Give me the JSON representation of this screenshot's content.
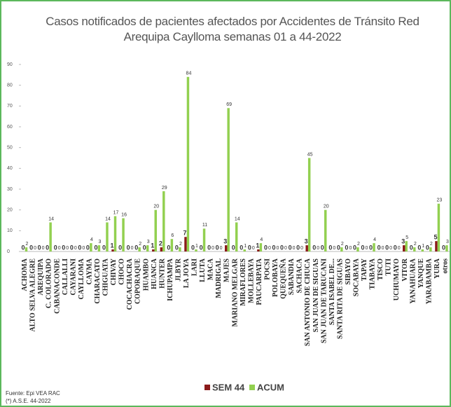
{
  "chart_data": {
    "type": "bar",
    "title": "Casos notificados  de pacientes afectados por Accidentes de Tránsito Red Arequipa Caylloma  semanas 01 a 44-2022",
    "categories": [
      "ACHOMA",
      "ALTO SELVA ALEGRE",
      "AREQUIPA",
      "C. COLORADO",
      "CABANACONDE",
      "CALLALLI",
      "CAYARANI",
      "CAYLLOMA",
      "CAYMA",
      "CHARACATO",
      "CHIGUATA",
      "CHIVAY",
      "CHOCO",
      "COCACHACRA",
      "COPORAQUE",
      "HUAMBO",
      "HUANCA",
      "HUNTER",
      "ICHUPAMPA",
      "JLBYR",
      "LA JOYA",
      "LARI",
      "LLUTA",
      "MACA",
      "MADRIGAL",
      "MAJES",
      "MARIANO MELGAR",
      "MIRAFLORES",
      "MOLLEBAYA",
      "PAUCARPATA",
      "POCSI",
      "POLOBAYA",
      "QUEQUEÑA",
      "SABANDIA",
      "SACHACA",
      "SAN ANTONIO DE CHUCA",
      "SAN JUAN DE SIGUAS",
      "SAN JUAN DE TARUCANI",
      "SANTA ISABEL DE...",
      "SANTA RITA DE SIGUAS",
      "SIBAYO",
      "SOCABAYA",
      "TAPAY",
      "TIABAYA",
      "TISCO",
      "TUTI",
      "UCHUMAYO",
      "VITOR",
      "YANAHUARA",
      "YANQUE",
      "YARABAMBA",
      "YURA",
      "otros"
    ],
    "series": [
      {
        "name": "SEM 44",
        "color": "#8b1a1a",
        "values": [
          0,
          0,
          0,
          0,
          0,
          0,
          0,
          0,
          0,
          0,
          0,
          1,
          0,
          0,
          0,
          0,
          1,
          2,
          0,
          0,
          7,
          0,
          0,
          0,
          0,
          3,
          0,
          0,
          0,
          1,
          0,
          0,
          0,
          0,
          0,
          3,
          0,
          0,
          0,
          0,
          0,
          0,
          0,
          0,
          0,
          0,
          0,
          3,
          0,
          0,
          0,
          5,
          0
        ]
      },
      {
        "name": "ACUM",
        "color": "#92d050",
        "values": [
          2,
          0,
          0,
          14,
          0,
          0,
          0,
          0,
          4,
          3,
          14,
          17,
          16,
          0,
          2,
          3,
          20,
          29,
          6,
          2,
          84,
          1,
          11,
          0,
          0,
          69,
          14,
          1,
          0,
          4,
          0,
          0,
          0,
          0,
          0,
          45,
          0,
          20,
          0,
          2,
          0,
          2,
          0,
          4,
          0,
          0,
          0,
          5,
          2,
          1,
          2,
          23,
          3
        ]
      }
    ],
    "ylim": [
      0,
      90
    ],
    "yticks": [
      0,
      10,
      20,
      30,
      40,
      50,
      60,
      70,
      80,
      90
    ],
    "legend": "bottom",
    "footnotes": [
      "Fuente: Epi VEA RAC",
      "(*) A.S.E. 44-2022"
    ]
  }
}
